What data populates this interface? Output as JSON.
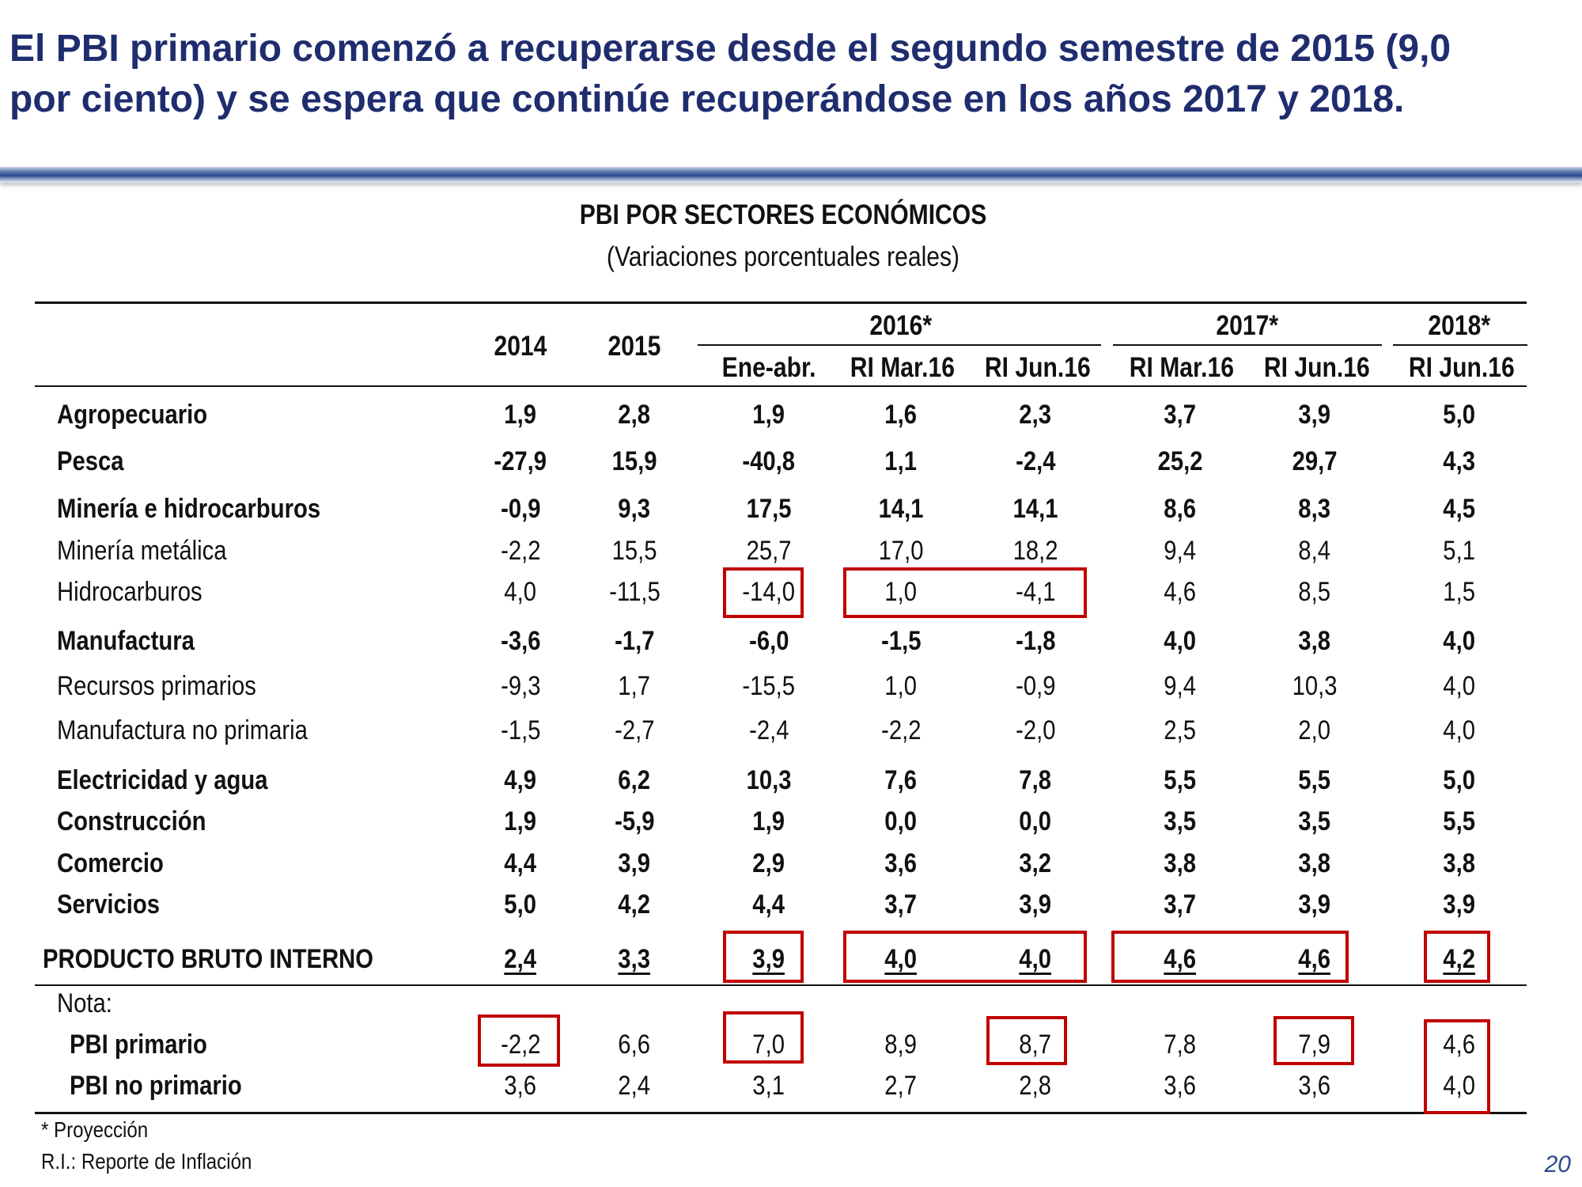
{
  "headline": {
    "line1": "El PBI primario comenzó a recuperarse desde el segundo semestre de 2015 (9,0",
    "line2": "por ciento) y se espera que continúe recuperándose en los años 2017 y 2018."
  },
  "table": {
    "title": "PBI POR SECTORES ECONÓMICOS",
    "subtitle": "(Variaciones porcentuales reales)",
    "year_headers": [
      "2014",
      "2015"
    ],
    "group_headers": [
      "2016*",
      "2017*",
      "2018*"
    ],
    "sub_headers": [
      "Ene-abr.",
      "RI Mar.16",
      "RI Jun.16",
      "RI Mar.16",
      "RI Jun.16",
      "RI Jun.16"
    ],
    "rows": [
      {
        "label": "Agropecuario",
        "values": [
          "1,9",
          "2,8",
          "1,9",
          "1,6",
          "2,3",
          "3,7",
          "3,9",
          "5,0"
        ]
      },
      {
        "label": "Pesca",
        "values": [
          "-27,9",
          "15,9",
          "-40,8",
          "1,1",
          "-2,4",
          "25,2",
          "29,7",
          "4,3"
        ]
      },
      {
        "label": "Minería e hidrocarburos",
        "values": [
          "-0,9",
          "9,3",
          "17,5",
          "14,1",
          "14,1",
          "8,6",
          "8,3",
          "4,5"
        ]
      },
      {
        "label": "Minería metálica",
        "values": [
          "-2,2",
          "15,5",
          "25,7",
          "17,0",
          "18,2",
          "9,4",
          "8,4",
          "5,1"
        ]
      },
      {
        "label": "Hidrocarburos",
        "values": [
          "4,0",
          "-11,5",
          "-14,0",
          "1,0",
          "-4,1",
          "4,6",
          "8,5",
          "1,5"
        ]
      },
      {
        "label": "Manufactura",
        "values": [
          "-3,6",
          "-1,7",
          "-6,0",
          "-1,5",
          "-1,8",
          "4,0",
          "3,8",
          "4,0"
        ]
      },
      {
        "label": "Recursos primarios",
        "values": [
          "-9,3",
          "1,7",
          "-15,5",
          "1,0",
          "-0,9",
          "9,4",
          "10,3",
          "4,0"
        ]
      },
      {
        "label": "Manufactura no primaria",
        "values": [
          "-1,5",
          "-2,7",
          "-2,4",
          "-2,2",
          "-2,0",
          "2,5",
          "2,0",
          "4,0"
        ]
      },
      {
        "label": "Electricidad y agua",
        "values": [
          "4,9",
          "6,2",
          "10,3",
          "7,6",
          "7,8",
          "5,5",
          "5,5",
          "5,0"
        ]
      },
      {
        "label": "Construcción",
        "values": [
          "1,9",
          "-5,9",
          "1,9",
          "0,0",
          "0,0",
          "3,5",
          "3,5",
          "5,5"
        ]
      },
      {
        "label": "Comercio",
        "values": [
          "4,4",
          "3,9",
          "2,9",
          "3,6",
          "3,2",
          "3,8",
          "3,8",
          "3,8"
        ]
      },
      {
        "label": "Servicios",
        "values": [
          "5,0",
          "4,2",
          "4,4",
          "3,7",
          "3,9",
          "3,7",
          "3,9",
          "3,9"
        ]
      }
    ],
    "total": {
      "label": "PRODUCTO BRUTO INTERNO",
      "values": [
        "2,4",
        "3,3",
        "3,9",
        "4,0",
        "4,0",
        "4,6",
        "4,6",
        "4,2"
      ]
    },
    "note_label": "Nota:",
    "note_rows": [
      {
        "label": "PBI primario",
        "values": [
          "-2,2",
          "6,6",
          "7,0",
          "8,9",
          "8,7",
          "7,8",
          "7,9",
          "4,6"
        ]
      },
      {
        "label": "PBI no primario",
        "values": [
          "3,6",
          "2,4",
          "3,1",
          "2,7",
          "2,8",
          "3,6",
          "3,6",
          "4,0"
        ]
      }
    ]
  },
  "footnotes": {
    "projection": "* Proyección",
    "ri": "R.I.: Reporte de Inflación"
  },
  "page_number": "20",
  "colors": {
    "headline": "#1f2d6e",
    "highlight_box": "#c00000",
    "accent_bar": "#2e4a8e"
  }
}
